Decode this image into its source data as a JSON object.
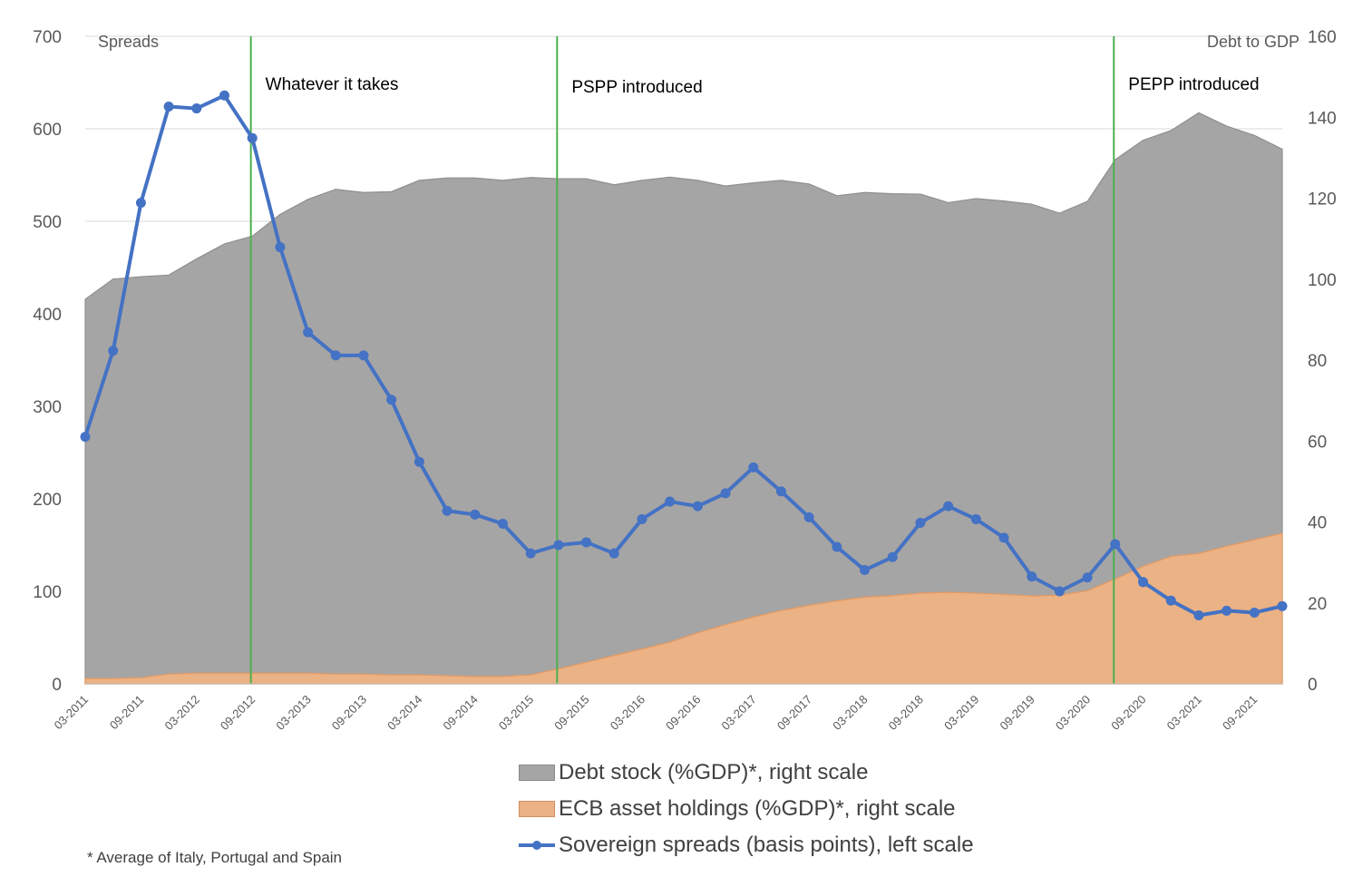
{
  "chart_data": {
    "type": "area",
    "left_axis": {
      "title": "Spreads",
      "min": 0,
      "max": 700,
      "step": 100,
      "ticks": [
        "0",
        "100",
        "200",
        "300",
        "400",
        "500",
        "600",
        "700"
      ]
    },
    "right_axis": {
      "title": "Debt to GDP",
      "min": 0,
      "max": 160,
      "step": 20,
      "ticks": [
        "0",
        "20",
        "40",
        "60",
        "80",
        "100",
        "120",
        "140",
        "160"
      ]
    },
    "x_tick_labels": [
      "03-2011",
      "09-2011",
      "03-2012",
      "09-2012",
      "03-2013",
      "09-2013",
      "03-2014",
      "09-2014",
      "03-2015",
      "09-2015",
      "03-2016",
      "09-2016",
      "03-2017",
      "09-2017",
      "03-2018",
      "09-2018",
      "03-2019",
      "09-2019",
      "03-2020",
      "09-2020",
      "03-2021",
      "09-2021"
    ],
    "x_quarters": [
      "2011Q1",
      "2011Q2",
      "2011Q3",
      "2011Q4",
      "2012Q1",
      "2012Q2",
      "2012Q3",
      "2012Q4",
      "2013Q1",
      "2013Q2",
      "2013Q3",
      "2013Q4",
      "2014Q1",
      "2014Q2",
      "2014Q3",
      "2014Q4",
      "2015Q1",
      "2015Q2",
      "2015Q3",
      "2015Q4",
      "2016Q1",
      "2016Q2",
      "2016Q3",
      "2016Q4",
      "2017Q1",
      "2017Q2",
      "2017Q3",
      "2017Q4",
      "2018Q1",
      "2018Q2",
      "2018Q3",
      "2018Q4",
      "2019Q1",
      "2019Q2",
      "2019Q3",
      "2019Q4",
      "2020Q1",
      "2020Q2",
      "2020Q3",
      "2020Q4",
      "2021Q1",
      "2021Q2",
      "2021Q3",
      "2021Q4"
    ],
    "series": [
      {
        "name": "Debt stock (%GDP)*, right scale",
        "type": "area",
        "axis": "right",
        "color": "#A6A5A5",
        "values": [
          95,
          100,
          100.6,
          101,
          105,
          108.7,
          110.6,
          116,
          119.7,
          122.2,
          121.4,
          121.6,
          124.4,
          125,
          125,
          124.4,
          125.1,
          124.8,
          124.8,
          123.3,
          124.4,
          125.2,
          124.4,
          123,
          123.8,
          124.4,
          123.5,
          120.6,
          121.4,
          121.1,
          121,
          118.9,
          119.9,
          119.3,
          118.5,
          116.3,
          119.2,
          129.5,
          134.3,
          136.7,
          141.1,
          137.8,
          135.5,
          132.1
        ]
      },
      {
        "name": "ECB asset holdings (%GDP)*, right scale",
        "type": "area",
        "axis": "right",
        "color": "#EBB285",
        "values": [
          1.3,
          1.3,
          1.5,
          2.4,
          2.6,
          2.6,
          2.6,
          2.6,
          2.6,
          2.4,
          2.4,
          2.2,
          2.2,
          2,
          1.8,
          1.8,
          2.2,
          3.7,
          5.3,
          7,
          8.6,
          10.3,
          12.6,
          14.6,
          16.5,
          18.1,
          19.4,
          20.5,
          21.4,
          21.8,
          22.4,
          22.6,
          22.4,
          22.1,
          21.7,
          21.9,
          23,
          25.9,
          29,
          31.5,
          32.2,
          34,
          35.6,
          37.2
        ]
      },
      {
        "name": "Sovereign spreads (basis points), left scale",
        "type": "line",
        "axis": "left",
        "color": "#4472C4",
        "values": [
          267,
          360,
          520,
          624,
          622,
          636,
          590,
          472,
          380,
          355,
          355,
          307,
          240,
          187,
          183,
          173,
          141,
          150,
          153,
          141,
          178,
          197,
          192,
          206,
          234,
          208,
          180,
          148,
          123,
          137,
          174,
          192,
          178,
          158,
          116,
          100,
          115,
          151,
          110,
          90,
          74,
          79,
          77,
          84
        ]
      }
    ],
    "annotations": [
      {
        "label": "Whatever it takes",
        "at": "2012Q3"
      },
      {
        "label": "PSPP introduced",
        "at": "2015Q2"
      },
      {
        "label": "PEPP introduced",
        "at": "2020Q2"
      }
    ],
    "marker_line_color": "#4CAF50",
    "grid": true,
    "legend_position": "bottom",
    "footnote": "* Average of Italy, Portugal and Spain"
  }
}
